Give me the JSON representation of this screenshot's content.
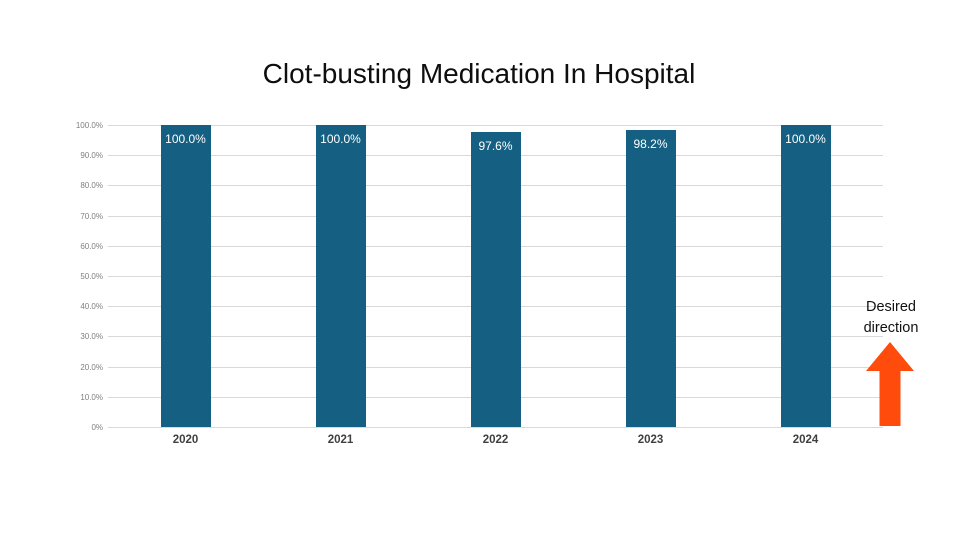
{
  "slide": {
    "background": "#FFFFFF"
  },
  "chart_data": {
    "type": "bar",
    "title": "Clot-busting Medication In Hospital",
    "categories": [
      "2020",
      "2021",
      "2022",
      "2023",
      "2024"
    ],
    "values": [
      100.0,
      100.0,
      97.6,
      98.2,
      100.0
    ],
    "value_labels": [
      "100.0%",
      "100.0%",
      "97.6%",
      "98.2%",
      "100.0%"
    ],
    "xlabel": "",
    "ylabel": "",
    "ylim": [
      0,
      100
    ],
    "ytick_step": 10,
    "ytick_labels": [
      "0%",
      "10.0%",
      "20.0%",
      "30.0%",
      "40.0%",
      "50.0%",
      "60.0%",
      "70.0%",
      "80.0%",
      "90.0%",
      "100.0%"
    ],
    "grid": true,
    "legend": false,
    "colors": {
      "bar": "#156082",
      "value_label": "#FFFFFF",
      "gridline": "#D9D9D9",
      "ytick_label": "#7F7F7F",
      "xtick_label": "#404040",
      "title": "#0E0E0E"
    },
    "annotation": {
      "text": "Desired direction",
      "arrow_icon": "up-block-arrow",
      "arrow_color": "#FF4B0C"
    }
  }
}
